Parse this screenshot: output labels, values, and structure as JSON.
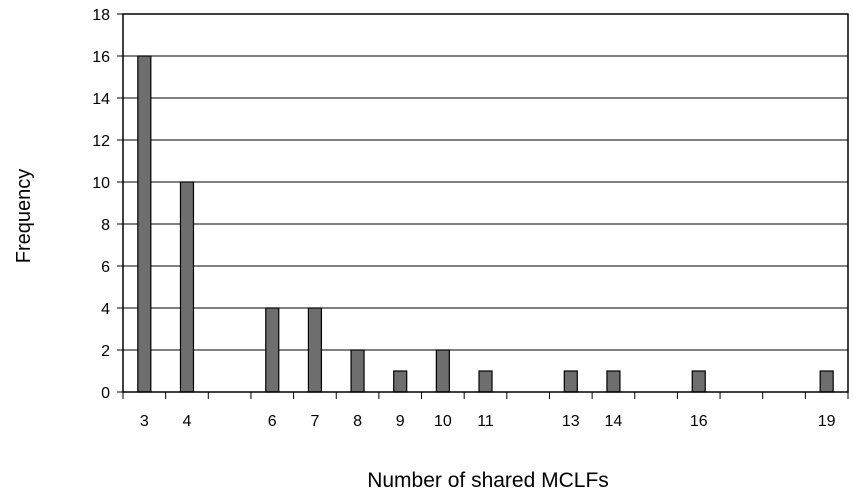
{
  "chart_data": {
    "type": "bar",
    "title": "",
    "xlabel": "Number of shared MCLFs",
    "ylabel": "Frequency",
    "ylim": [
      0,
      18
    ],
    "yticks": [
      0,
      2,
      4,
      6,
      8,
      10,
      12,
      14,
      16,
      18
    ],
    "grid": true,
    "legend": "none",
    "bar_color": "#6e6e6e",
    "x_slots": [
      "3",
      "4",
      "5",
      "6",
      "7",
      "8",
      "9",
      "10",
      "11",
      "12",
      "13",
      "14",
      "15",
      "16",
      "17",
      "18",
      "19"
    ],
    "categories": [
      "3",
      "4",
      "6",
      "7",
      "8",
      "9",
      "10",
      "11",
      "13",
      "14",
      "16",
      "19"
    ],
    "values": [
      16,
      10,
      4,
      4,
      2,
      1,
      2,
      1,
      1,
      1,
      1,
      1
    ]
  }
}
